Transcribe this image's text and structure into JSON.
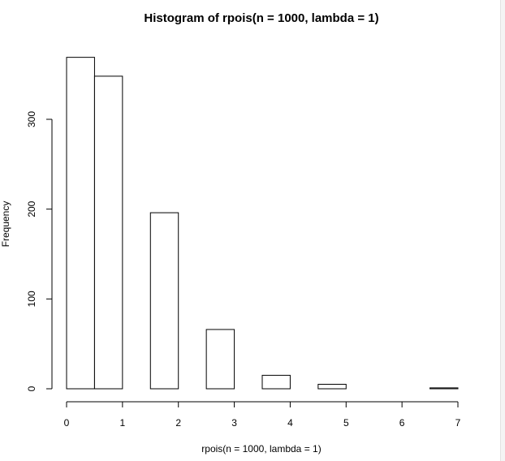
{
  "chart_data": {
    "type": "bar",
    "title": "Histogram of rpois(n = 1000, lambda = 1)",
    "xlabel": "rpois(n = 1000, lambda = 1)",
    "ylabel": "Frequency",
    "xlim": [
      0,
      7
    ],
    "ylim": [
      0,
      370
    ],
    "x_ticks": [
      0,
      1,
      2,
      3,
      4,
      5,
      6,
      7
    ],
    "y_ticks": [
      0,
      100,
      200,
      300
    ],
    "bins": [
      {
        "from": 0.0,
        "to": 0.5,
        "value": 369
      },
      {
        "from": 0.5,
        "to": 1.0,
        "value": 348
      },
      {
        "from": 1.0,
        "to": 1.5,
        "value": 0
      },
      {
        "from": 1.5,
        "to": 2.0,
        "value": 196
      },
      {
        "from": 2.0,
        "to": 2.5,
        "value": 0
      },
      {
        "from": 2.5,
        "to": 3.0,
        "value": 66
      },
      {
        "from": 3.0,
        "to": 3.5,
        "value": 0
      },
      {
        "from": 3.5,
        "to": 4.0,
        "value": 15
      },
      {
        "from": 4.0,
        "to": 4.5,
        "value": 0
      },
      {
        "from": 4.5,
        "to": 5.0,
        "value": 5
      },
      {
        "from": 5.0,
        "to": 5.5,
        "value": 0
      },
      {
        "from": 5.5,
        "to": 6.0,
        "value": 0
      },
      {
        "from": 6.0,
        "to": 6.5,
        "value": 0
      },
      {
        "from": 6.5,
        "to": 7.0,
        "value": 1
      }
    ],
    "grid": false,
    "legend": "none",
    "colors": {
      "bar_fill": "#ffffff",
      "bar_stroke": "#000000",
      "axis": "#000000"
    }
  }
}
